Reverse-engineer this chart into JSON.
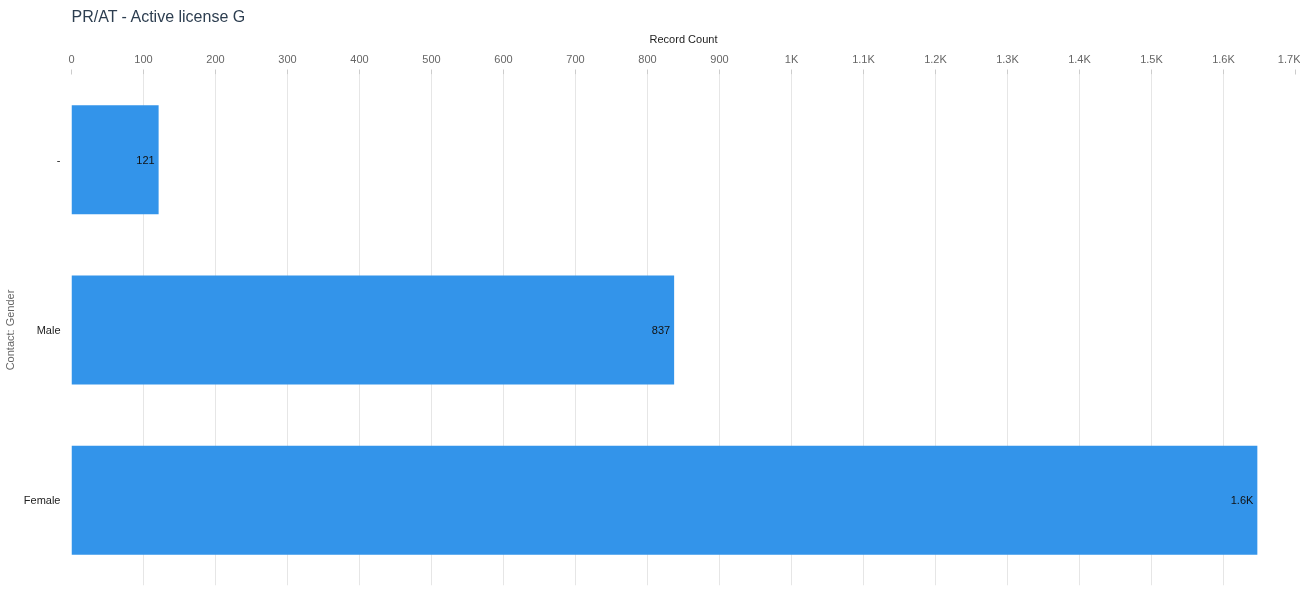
{
  "chart_data": {
    "type": "bar",
    "orientation": "horizontal",
    "title": "PR/AT - Active license G",
    "xlabel": "Record Count",
    "ylabel": "Contact: Gender",
    "categories": [
      "-",
      "Male",
      "Female"
    ],
    "series": [
      {
        "color": "#3394ea",
        "values": [
          121,
          837,
          1647
        ],
        "value_labels": [
          "121",
          "837",
          "1.6K"
        ]
      }
    ],
    "xlim": [
      0,
      1700
    ],
    "xticks": [
      0,
      100,
      200,
      300,
      400,
      500,
      600,
      700,
      800,
      900,
      {
        "value": 1000,
        "label": "1K"
      },
      {
        "value": 1100,
        "label": "1.1K"
      },
      {
        "value": 1200,
        "label": "1.2K"
      },
      {
        "value": 1300,
        "label": "1.3K"
      },
      {
        "value": 1400,
        "label": "1.4K"
      },
      {
        "value": 1500,
        "label": "1.5K"
      },
      {
        "value": 1600,
        "label": "1.6K"
      },
      {
        "value": 1700,
        "label": "1.7K"
      }
    ],
    "grid": "x"
  }
}
